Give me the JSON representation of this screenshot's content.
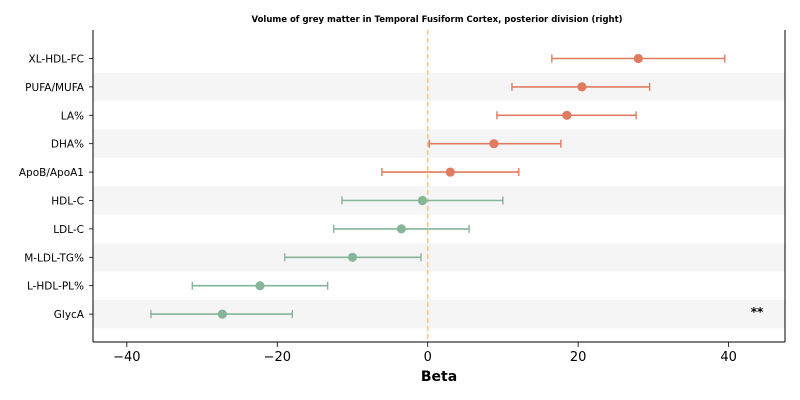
{
  "chart_data": {
    "type": "forest",
    "title": "Volume of grey matter in Temporal Fusiform Cortex, posterior division (right)",
    "xlabel": "Beta",
    "xlim": [
      -44.5,
      47.5
    ],
    "xticks": [
      -40,
      -20,
      0,
      20,
      40
    ],
    "xtick_labels": [
      "−40",
      "−20",
      "0",
      "20",
      "40"
    ],
    "reference_line": 0,
    "grid": false,
    "colors": {
      "positive": "#e07b5f",
      "negative": "#86b59a",
      "reference": "#f0c88a",
      "band": "#f5f5f5"
    },
    "rows": [
      {
        "label": "XL-HDL-FC",
        "beta": 28.0,
        "lower": 16.5,
        "upper": 39.5,
        "annotation": ""
      },
      {
        "label": "PUFA/MUFA",
        "beta": 20.5,
        "lower": 11.2,
        "upper": 29.5,
        "annotation": ""
      },
      {
        "label": "LA%",
        "beta": 18.5,
        "lower": 9.2,
        "upper": 27.7,
        "annotation": ""
      },
      {
        "label": "DHA%",
        "beta": 8.8,
        "lower": 0.2,
        "upper": 17.7,
        "annotation": ""
      },
      {
        "label": "ApoB/ApoA1",
        "beta": 3.0,
        "lower": -6.1,
        "upper": 12.1,
        "annotation": ""
      },
      {
        "label": "HDL-C",
        "beta": -0.7,
        "lower": -11.4,
        "upper": 10.0,
        "annotation": ""
      },
      {
        "label": "LDL-C",
        "beta": -3.5,
        "lower": -12.5,
        "upper": 5.5,
        "annotation": ""
      },
      {
        "label": "M-LDL-TG%",
        "beta": -10.0,
        "lower": -19.0,
        "upper": -0.9,
        "annotation": ""
      },
      {
        "label": "L-HDL-PL%",
        "beta": -22.3,
        "lower": -31.3,
        "upper": -13.3,
        "annotation": ""
      },
      {
        "label": "GlycA",
        "beta": -27.3,
        "lower": -36.8,
        "upper": -18.0,
        "annotation": "**"
      }
    ]
  }
}
